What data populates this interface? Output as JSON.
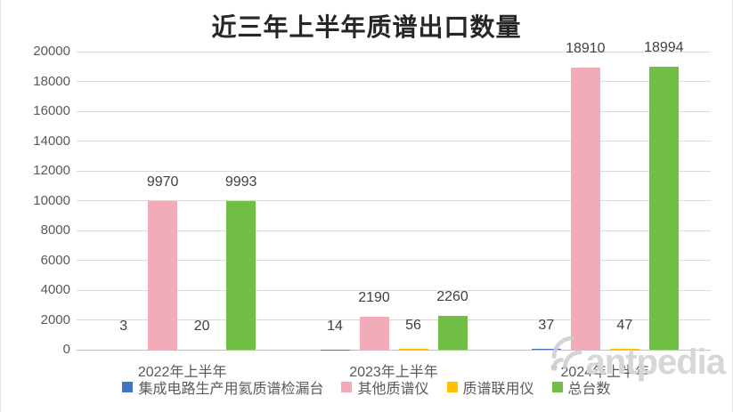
{
  "chart_data": {
    "type": "bar",
    "title": "近三年上半年质谱出口数量",
    "categories": [
      "2022年上半年",
      "2023年上半年",
      "2024年上半年"
    ],
    "series": [
      {
        "name": "集成电路生产用氦质谱检漏台",
        "color": "#4472C4",
        "values": [
          3,
          14,
          37
        ]
      },
      {
        "name": "其他质谱仪",
        "color": "#F2ABB9",
        "values": [
          9970,
          2190,
          18910
        ]
      },
      {
        "name": "质谱联用仪",
        "color": "#FFC000",
        "values": [
          20,
          56,
          47
        ]
      },
      {
        "name": "总台数",
        "color": "#70BE44",
        "values": [
          9993,
          2260,
          18994
        ]
      }
    ],
    "ylim": [
      0,
      20000
    ],
    "y_ticks": [
      0,
      2000,
      4000,
      6000,
      8000,
      10000,
      12000,
      14000,
      16000,
      18000,
      20000
    ],
    "grid": true,
    "data_labels": true,
    "legend_position": "bottom",
    "colors": {
      "gridline": "#D9D9D9",
      "axis_line": "#BFBFBF",
      "tick_label": "#595959",
      "data_label": "#404040",
      "title": "#262626"
    }
  },
  "watermark": {
    "text": "antpedia",
    "icon": "signal-arcs-icon"
  }
}
